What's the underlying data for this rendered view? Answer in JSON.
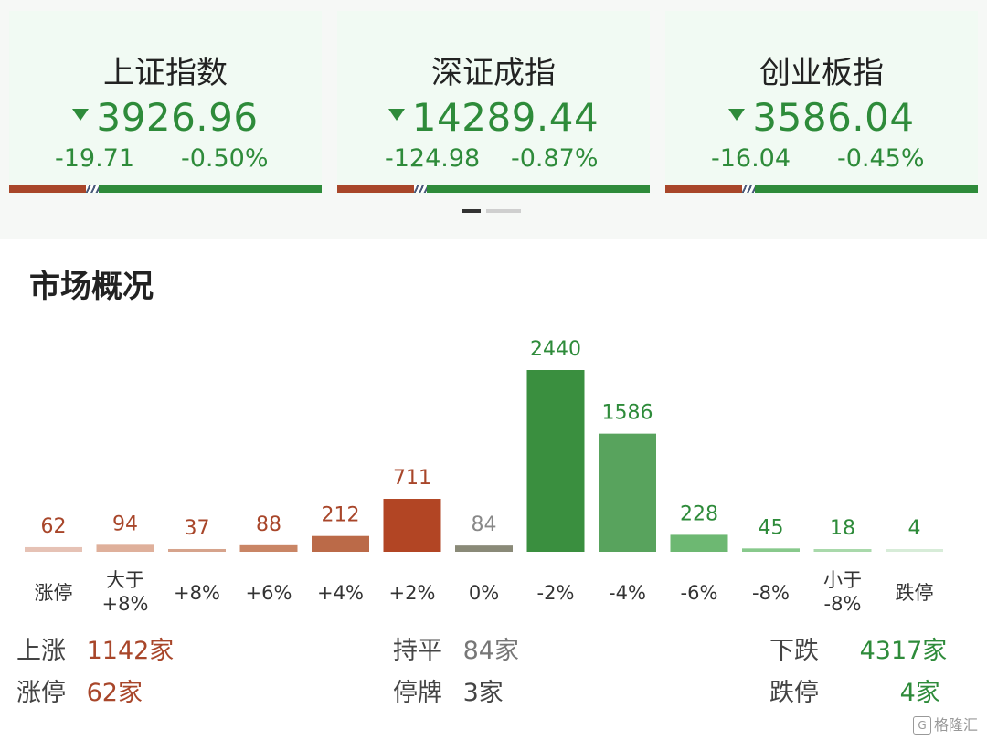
{
  "indices": [
    {
      "name": "上证指数",
      "price": "3926.96",
      "change": "-19.71",
      "pct": "-0.50%"
    },
    {
      "name": "深证成指",
      "price": "14289.44",
      "change": "-124.98",
      "pct": "-0.87%"
    },
    {
      "name": "创业板指",
      "price": "3586.04",
      "change": "-16.04",
      "pct": "-0.45%"
    }
  ],
  "section_title": "市场概况",
  "colors": {
    "up": "#a8462a",
    "down": "#2e8b3a",
    "flat": "#8a8a78"
  },
  "chart_data": {
    "type": "bar",
    "categories": [
      "涨停",
      "大于\n+8%",
      "+8%",
      "+6%",
      "+4%",
      "+2%",
      "0%",
      "-2%",
      "-4%",
      "-6%",
      "-8%",
      "小于\n-8%",
      "跌停"
    ],
    "values": [
      62,
      94,
      37,
      88,
      212,
      711,
      84,
      2440,
      1586,
      228,
      45,
      18,
      4
    ],
    "bar_colors": [
      "#e6c2b5",
      "#dfb09b",
      "#d6a38c",
      "#c98565",
      "#bb6a48",
      "#b24524",
      "#8a8a78",
      "#3a8f3f",
      "#58a35d",
      "#6db872",
      "#88c98c",
      "#a9d9ab",
      "#d7ecd8"
    ],
    "label_colors": [
      "#a8462a",
      "#a8462a",
      "#a8462a",
      "#a8462a",
      "#a8462a",
      "#a8462a",
      "#888888",
      "#2e8b3a",
      "#2e8b3a",
      "#2e8b3a",
      "#2e8b3a",
      "#2e8b3a",
      "#2e8b3a"
    ]
  },
  "stats": {
    "up_label": "上涨",
    "up_value": "1142家",
    "flat_label": "持平",
    "flat_value": "84家",
    "down_label": "下跌",
    "down_value": "4317家",
    "limit_up_label": "涨停",
    "limit_up_value": "62家",
    "suspended_label": "停牌",
    "suspended_value": "3家",
    "limit_down_label": "跌停",
    "limit_down_value": "4家"
  },
  "watermark": "格隆汇"
}
